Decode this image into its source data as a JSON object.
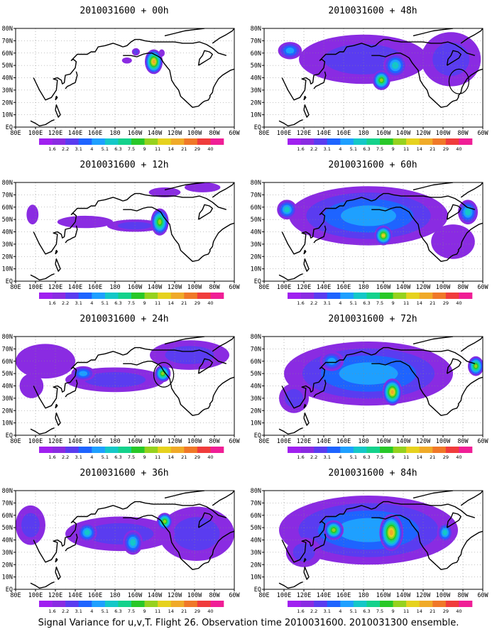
{
  "caption": "Signal Variance for u,v,T. Flight 26. Observation time 2010031600. 2010031300 ensemble.",
  "colorbar": {
    "levels": [
      "1.6",
      "2.2",
      "3.1",
      "4",
      "5.1",
      "6.3",
      "7.5",
      "9",
      "11",
      "14",
      "21",
      "29",
      "40"
    ],
    "colors": [
      "#a020f0",
      "#8a2be2",
      "#5a3cf0",
      "#1e64ff",
      "#1ea0ff",
      "#14c8c8",
      "#14d28c",
      "#28c828",
      "#96d21e",
      "#e6d21e",
      "#f0aa28",
      "#f07828",
      "#f03c3c",
      "#f01e96"
    ]
  },
  "panel_layout": "4 rows x 2 columns; left column +00h, +12h, +24h, +36h; right column +48h, +60h, +72h, +84h",
  "chart_data": [
    {
      "type": "heatmap",
      "title": "2010031600 + 00h",
      "lead_hours": 0,
      "xticks": [
        "80E",
        "100E",
        "120E",
        "140E",
        "160E",
        "180",
        "160W",
        "140W",
        "120W",
        "100W",
        "80W",
        "60W"
      ],
      "yticks": [
        "EQ",
        "10N",
        "20N",
        "30N",
        "40N",
        "50N",
        "60N",
        "70N",
        "80N"
      ],
      "xlim": [
        80,
        300
      ],
      "ylim": [
        0,
        80
      ],
      "grid": true,
      "circled_regions": [],
      "features": [
        {
          "lon": 219,
          "lat": 53,
          "rx": 9,
          "ry": 10,
          "peak": 14
        },
        {
          "lon": 201,
          "lat": 61,
          "rx": 4,
          "ry": 3,
          "peak": 3
        },
        {
          "lon": 192,
          "lat": 54,
          "rx": 5,
          "ry": 2.5,
          "peak": 2
        },
        {
          "lon": 227,
          "lat": 60,
          "rx": 3,
          "ry": 3,
          "peak": 2
        }
      ]
    },
    {
      "type": "heatmap",
      "title": "2010031600 + 12h",
      "lead_hours": 12,
      "xticks": [
        "80E",
        "100E",
        "120E",
        "140E",
        "160E",
        "180",
        "160W",
        "140W",
        "120W",
        "100W",
        "80W",
        "60W"
      ],
      "yticks": [
        "EQ",
        "10N",
        "20N",
        "30N",
        "40N",
        "50N",
        "60N",
        "70N",
        "80N"
      ],
      "xlim": [
        80,
        300
      ],
      "ylim": [
        0,
        80
      ],
      "grid": true,
      "circled_regions": [],
      "features": [
        {
          "lon": 225,
          "lat": 48,
          "rx": 9,
          "ry": 11,
          "peak": 9
        },
        {
          "lon": 200,
          "lat": 45,
          "rx": 28,
          "ry": 5,
          "peak": 3
        },
        {
          "lon": 150,
          "lat": 48,
          "rx": 28,
          "ry": 5,
          "peak": 2
        },
        {
          "lon": 230,
          "lat": 72,
          "rx": 16,
          "ry": 4,
          "peak": 2
        },
        {
          "lon": 268,
          "lat": 76,
          "rx": 18,
          "ry": 4,
          "peak": 2
        },
        {
          "lon": 97,
          "lat": 54,
          "rx": 6,
          "ry": 8,
          "peak": 2
        }
      ]
    },
    {
      "type": "heatmap",
      "title": "2010031600 + 24h",
      "lead_hours": 24,
      "xticks": [
        "80E",
        "100E",
        "120E",
        "140E",
        "160E",
        "180",
        "160W",
        "140W",
        "120W",
        "100W",
        "80W",
        "60W"
      ],
      "yticks": [
        "EQ",
        "10N",
        "20N",
        "30N",
        "40N",
        "50N",
        "60N",
        "70N",
        "80N"
      ],
      "xlim": [
        80,
        300
      ],
      "ylim": [
        0,
        80
      ],
      "grid": true,
      "circled_regions": [
        {
          "lon": 229,
          "lat": 49
        }
      ],
      "features": [
        {
          "lon": 228,
          "lat": 50,
          "rx": 8,
          "ry": 7,
          "peak": 9
        },
        {
          "lon": 148,
          "lat": 50,
          "rx": 12,
          "ry": 6,
          "peak": 4
        },
        {
          "lon": 180,
          "lat": 45,
          "rx": 50,
          "ry": 10,
          "peak": 3
        },
        {
          "lon": 255,
          "lat": 65,
          "rx": 40,
          "ry": 12,
          "peak": 3
        },
        {
          "lon": 110,
          "lat": 60,
          "rx": 30,
          "ry": 14,
          "peak": 2
        },
        {
          "lon": 96,
          "lat": 40,
          "rx": 12,
          "ry": 10,
          "peak": 2
        }
      ]
    },
    {
      "type": "heatmap",
      "title": "2010031600 + 36h",
      "lead_hours": 36,
      "xticks": [
        "80E",
        "100E",
        "120E",
        "140E",
        "160E",
        "180",
        "160W",
        "140W",
        "120W",
        "100W",
        "80W",
        "60W"
      ],
      "yticks": [
        "EQ",
        "10N",
        "20N",
        "30N",
        "40N",
        "50N",
        "60N",
        "70N",
        "80N"
      ],
      "xlim": [
        80,
        300
      ],
      "ylim": [
        0,
        80
      ],
      "grid": true,
      "circled_regions": [],
      "features": [
        {
          "lon": 230,
          "lat": 55,
          "rx": 8,
          "ry": 7,
          "peak": 9
        },
        {
          "lon": 152,
          "lat": 46,
          "rx": 10,
          "ry": 8,
          "peak": 6
        },
        {
          "lon": 198,
          "lat": 38,
          "rx": 10,
          "ry": 10,
          "peak": 6
        },
        {
          "lon": 185,
          "lat": 45,
          "rx": 55,
          "ry": 14,
          "peak": 3
        },
        {
          "lon": 95,
          "lat": 52,
          "rx": 15,
          "ry": 16,
          "peak": 3
        },
        {
          "lon": 262,
          "lat": 45,
          "rx": 38,
          "ry": 22,
          "peak": 3
        }
      ]
    },
    {
      "type": "heatmap",
      "title": "2010031600 + 48h",
      "lead_hours": 48,
      "xticks": [
        "80E",
        "100E",
        "120E",
        "140E",
        "160E",
        "180",
        "160W",
        "140W",
        "120W",
        "100W",
        "80W",
        "60W"
      ],
      "yticks": [
        "EQ",
        "10N",
        "20N",
        "30N",
        "40N",
        "50N",
        "60N",
        "70N",
        "80N"
      ],
      "xlim": [
        80,
        300
      ],
      "ylim": [
        0,
        80
      ],
      "grid": true,
      "circled_regions": [
        {
          "lon": 276,
          "lat": 37
        }
      ],
      "features": [
        {
          "lon": 198,
          "lat": 38,
          "rx": 9,
          "ry": 8,
          "peak": 9
        },
        {
          "lon": 212,
          "lat": 50,
          "rx": 12,
          "ry": 10,
          "peak": 6
        },
        {
          "lon": 106,
          "lat": 62,
          "rx": 12,
          "ry": 7,
          "peak": 5
        },
        {
          "lon": 180,
          "lat": 55,
          "rx": 65,
          "ry": 20,
          "peak": 3
        },
        {
          "lon": 268,
          "lat": 55,
          "rx": 30,
          "ry": 22,
          "peak": 3
        }
      ]
    },
    {
      "type": "heatmap",
      "title": "2010031600 + 60h",
      "lead_hours": 60,
      "xticks": [
        "80E",
        "100E",
        "120E",
        "140E",
        "160E",
        "180",
        "160W",
        "140W",
        "120W",
        "100W",
        "80W",
        "60W"
      ],
      "yticks": [
        "EQ",
        "10N",
        "20N",
        "30N",
        "40N",
        "50N",
        "60N",
        "70N",
        "80N"
      ],
      "xlim": [
        80,
        300
      ],
      "ylim": [
        0,
        80
      ],
      "grid": true,
      "circled_regions": [],
      "features": [
        {
          "lon": 200,
          "lat": 37,
          "rx": 9,
          "ry": 8,
          "peak": 11
        },
        {
          "lon": 103,
          "lat": 58,
          "rx": 10,
          "ry": 8,
          "peak": 6
        },
        {
          "lon": 285,
          "lat": 56,
          "rx": 10,
          "ry": 10,
          "peak": 6
        },
        {
          "lon": 185,
          "lat": 53,
          "rx": 80,
          "ry": 24,
          "peak": 4
        },
        {
          "lon": 270,
          "lat": 32,
          "rx": 22,
          "ry": 14,
          "peak": 2
        }
      ]
    },
    {
      "type": "heatmap",
      "title": "2010031600 + 72h",
      "lead_hours": 72,
      "xticks": [
        "80E",
        "100E",
        "120E",
        "140E",
        "160E",
        "180",
        "160W",
        "140W",
        "120W",
        "100W",
        "80W",
        "60W"
      ],
      "yticks": [
        "EQ",
        "10N",
        "20N",
        "30N",
        "40N",
        "50N",
        "60N",
        "70N",
        "80N"
      ],
      "xlim": [
        80,
        300
      ],
      "ylim": [
        0,
        80
      ],
      "grid": true,
      "circled_regions": [],
      "features": [
        {
          "lon": 209,
          "lat": 35,
          "rx": 10,
          "ry": 11,
          "peak": 14
        },
        {
          "lon": 293,
          "lat": 56,
          "rx": 8,
          "ry": 8,
          "peak": 9
        },
        {
          "lon": 148,
          "lat": 60,
          "rx": 12,
          "ry": 8,
          "peak": 5
        },
        {
          "lon": 185,
          "lat": 50,
          "rx": 85,
          "ry": 26,
          "peak": 4
        },
        {
          "lon": 110,
          "lat": 30,
          "rx": 15,
          "ry": 12,
          "peak": 3
        }
      ]
    },
    {
      "type": "heatmap",
      "title": "2010031600 + 84h",
      "lead_hours": 84,
      "xticks": [
        "80E",
        "100E",
        "120E",
        "140E",
        "160E",
        "180",
        "160W",
        "140W",
        "120W",
        "100W",
        "80W",
        "60W"
      ],
      "yticks": [
        "EQ",
        "10N",
        "20N",
        "30N",
        "40N",
        "50N",
        "60N",
        "70N",
        "80N"
      ],
      "xlim": [
        80,
        300
      ],
      "ylim": [
        0,
        80
      ],
      "grid": true,
      "circled_regions": [],
      "features": [
        {
          "lon": 208,
          "lat": 46,
          "rx": 12,
          "ry": 15,
          "peak": 14
        },
        {
          "lon": 150,
          "lat": 48,
          "rx": 10,
          "ry": 8,
          "peak": 9
        },
        {
          "lon": 262,
          "lat": 46,
          "rx": 8,
          "ry": 8,
          "peak": 6
        },
        {
          "lon": 185,
          "lat": 48,
          "rx": 90,
          "ry": 28,
          "peak": 4
        },
        {
          "lon": 120,
          "lat": 30,
          "rx": 18,
          "ry": 12,
          "peak": 3
        }
      ]
    }
  ]
}
